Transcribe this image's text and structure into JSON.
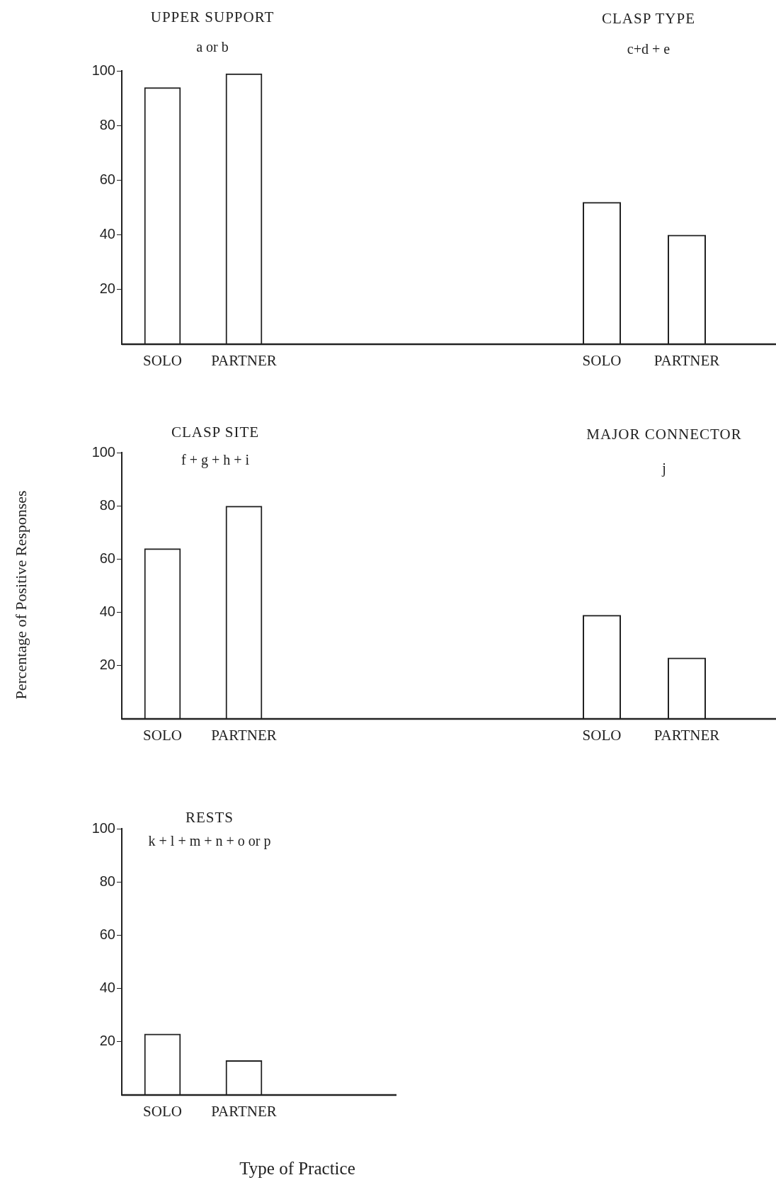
{
  "chart_data": [
    {
      "type": "bar",
      "title": "UPPER SUPPORT",
      "subtitle": "a or b",
      "categories": [
        "SOLO",
        "PARTNER"
      ],
      "values": [
        94,
        99
      ],
      "color": "#222222",
      "ylim": [
        0,
        100
      ],
      "yticks": [
        20,
        40,
        60,
        80,
        100
      ],
      "grid": false,
      "legend": false
    },
    {
      "type": "bar",
      "title": "CLASP  TYPE",
      "subtitle": "c+d + e",
      "categories": [
        "SOLO",
        "PARTNER"
      ],
      "values": [
        52,
        40
      ],
      "color": "#222222",
      "ylim": [
        0,
        100
      ],
      "grid": false,
      "legend": false,
      "tick_labels": "x"
    },
    {
      "type": "bar",
      "title": "CLASP  SITE",
      "subtitle": "f + g + h + i",
      "ylabel": "Percentage  of  Positive  Responses",
      "categories": [
        "SOLO",
        "PARTNER"
      ],
      "values": [
        64,
        80
      ],
      "color": "#222222",
      "ylim": [
        0,
        100
      ],
      "yticks": [
        20,
        40,
        60,
        80,
        100
      ],
      "grid": false,
      "legend": false
    },
    {
      "type": "bar",
      "title": "MAJOR  CONNECTOR",
      "subtitle": "j",
      "categories": [
        "SOLO",
        "PARTNER"
      ],
      "values": [
        39,
        23
      ],
      "color": "#222222",
      "ylim": [
        0,
        100
      ],
      "grid": false,
      "legend": false,
      "tick_labels": "x"
    },
    {
      "type": "bar",
      "title": "RESTS",
      "subtitle": "k + l + m + n + o or p",
      "xlabel": "Type of  Practice",
      "categories": [
        "SOLO",
        "PARTNER"
      ],
      "values": [
        23,
        13
      ],
      "color": "#222222",
      "ylim": [
        0,
        100
      ],
      "yticks": [
        20,
        40,
        60,
        80,
        100
      ],
      "grid": false,
      "legend": false
    }
  ]
}
